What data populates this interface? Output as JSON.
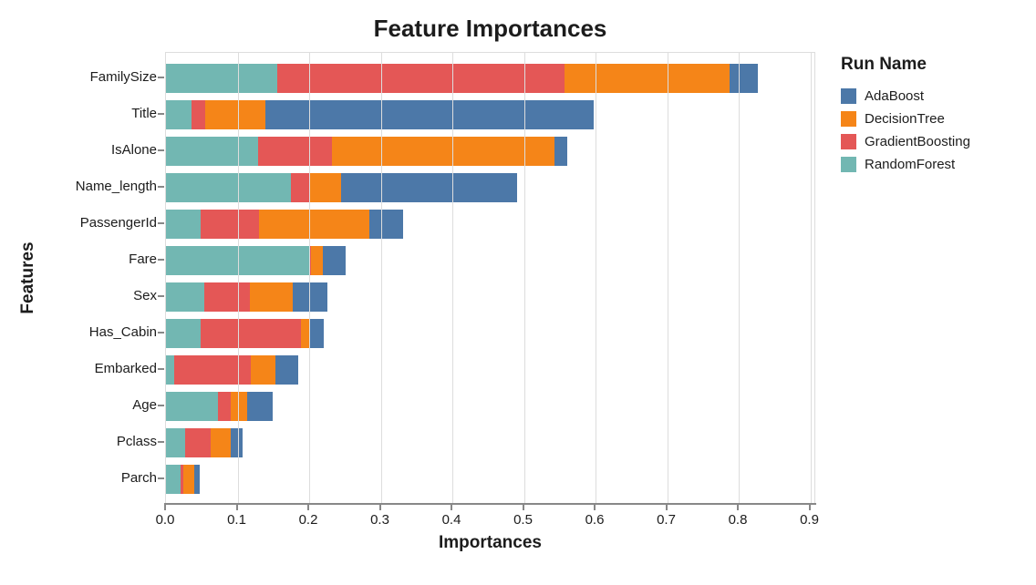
{
  "chart_data": {
    "type": "bar",
    "orientation": "horizontal",
    "stacked": true,
    "title": "Feature Importances",
    "xlabel": "Importances",
    "ylabel": "Features",
    "xlim": [
      0,
      0.908
    ],
    "x_ticks": [
      "0.0",
      "0.1",
      "0.2",
      "0.3",
      "0.4",
      "0.5",
      "0.6",
      "0.7",
      "0.8",
      "0.9"
    ],
    "grid": true,
    "legend": {
      "title": "Run Name",
      "position": "top-right"
    },
    "categories": [
      "FamilySize",
      "Title",
      "IsAlone",
      "Name_length",
      "PassengerId",
      "Fare",
      "Sex",
      "Has_Cabin",
      "Embarked",
      "Age",
      "Pclass",
      "Parch"
    ],
    "stack_order": [
      "RandomForest",
      "GradientBoosting",
      "DecisionTree",
      "AdaBoost"
    ],
    "series": [
      {
        "name": "AdaBoost",
        "color": "#4c78a8",
        "values": [
          0.04,
          0.459,
          0.017,
          0.245,
          0.047,
          0.032,
          0.048,
          0.02,
          0.032,
          0.035,
          0.017,
          0.008
        ]
      },
      {
        "name": "DecisionTree",
        "color": "#f58518",
        "values": [
          0.23,
          0.084,
          0.311,
          0.044,
          0.154,
          0.016,
          0.06,
          0.011,
          0.034,
          0.023,
          0.028,
          0.015
        ]
      },
      {
        "name": "GradientBoosting",
        "color": "#e45756",
        "values": [
          0.401,
          0.019,
          0.103,
          0.026,
          0.081,
          0.002,
          0.063,
          0.14,
          0.108,
          0.019,
          0.035,
          0.003
        ]
      },
      {
        "name": "RandomForest",
        "color": "#72b7b2",
        "values": [
          0.156,
          0.036,
          0.129,
          0.175,
          0.049,
          0.201,
          0.054,
          0.049,
          0.011,
          0.072,
          0.027,
          0.021
        ]
      }
    ],
    "totals": [
      0.827,
      0.598,
      0.56,
      0.49,
      0.331,
      0.251,
      0.225,
      0.22,
      0.185,
      0.149,
      0.107,
      0.047
    ]
  },
  "colors": {
    "grid": "#dddddd",
    "axis_domain": "#888888",
    "tick": "#888888",
    "text": "#1c1c1c"
  }
}
